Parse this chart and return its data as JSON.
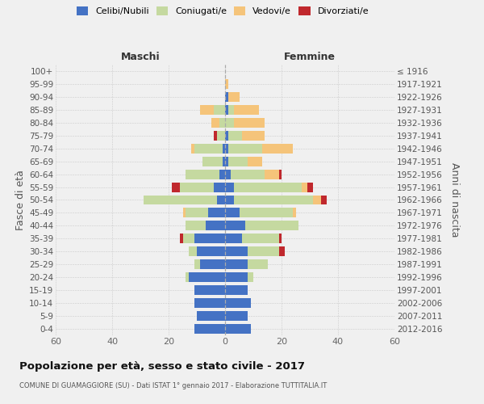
{
  "age_groups": [
    "0-4",
    "5-9",
    "10-14",
    "15-19",
    "20-24",
    "25-29",
    "30-34",
    "35-39",
    "40-44",
    "45-49",
    "50-54",
    "55-59",
    "60-64",
    "65-69",
    "70-74",
    "75-79",
    "80-84",
    "85-89",
    "90-94",
    "95-99",
    "100+"
  ],
  "birth_years": [
    "2012-2016",
    "2007-2011",
    "2002-2006",
    "1997-2001",
    "1992-1996",
    "1987-1991",
    "1982-1986",
    "1977-1981",
    "1972-1976",
    "1967-1971",
    "1962-1966",
    "1957-1961",
    "1952-1956",
    "1947-1951",
    "1942-1946",
    "1937-1941",
    "1932-1936",
    "1927-1931",
    "1922-1926",
    "1917-1921",
    "≤ 1916"
  ],
  "maschi": {
    "celibi": [
      11,
      10,
      11,
      11,
      13,
      9,
      10,
      11,
      7,
      6,
      3,
      4,
      2,
      1,
      1,
      0,
      0,
      0,
      0,
      0,
      0
    ],
    "coniugati": [
      0,
      0,
      0,
      0,
      1,
      2,
      3,
      4,
      7,
      8,
      26,
      12,
      12,
      7,
      10,
      3,
      2,
      4,
      0,
      0,
      0
    ],
    "vedovi": [
      0,
      0,
      0,
      0,
      0,
      0,
      0,
      0,
      0,
      1,
      0,
      0,
      0,
      0,
      1,
      0,
      3,
      5,
      0,
      0,
      0
    ],
    "divorziati": [
      0,
      0,
      0,
      0,
      0,
      0,
      0,
      1,
      0,
      0,
      0,
      3,
      0,
      0,
      0,
      1,
      0,
      0,
      0,
      0,
      0
    ]
  },
  "femmine": {
    "nubili": [
      9,
      8,
      9,
      8,
      8,
      8,
      8,
      6,
      7,
      5,
      3,
      3,
      2,
      1,
      1,
      1,
      0,
      1,
      1,
      0,
      0
    ],
    "coniugate": [
      0,
      0,
      0,
      0,
      2,
      7,
      11,
      13,
      19,
      19,
      28,
      24,
      12,
      7,
      12,
      5,
      3,
      2,
      0,
      0,
      0
    ],
    "vedove": [
      0,
      0,
      0,
      0,
      0,
      0,
      0,
      0,
      0,
      1,
      3,
      2,
      5,
      5,
      11,
      8,
      11,
      9,
      4,
      1,
      0
    ],
    "divorziate": [
      0,
      0,
      0,
      0,
      0,
      0,
      2,
      1,
      0,
      0,
      2,
      2,
      1,
      0,
      0,
      0,
      0,
      0,
      0,
      0,
      0
    ]
  },
  "colors": {
    "celibi_nubili": "#4472c4",
    "coniugati": "#c5d9a0",
    "vedovi": "#f5c47a",
    "divorziati": "#c0282d"
  },
  "xlim": 60,
  "title": "Popolazione per età, sesso e stato civile - 2017",
  "subtitle": "COMUNE DI GUAMAGGIORE (SU) - Dati ISTAT 1° gennaio 2017 - Elaborazione TUTTITALIA.IT",
  "ylabel_left": "Fasce di età",
  "ylabel_right": "Anni di nascita",
  "legend_labels": [
    "Celibi/Nubili",
    "Coniugati/e",
    "Vedovi/e",
    "Divorziati/e"
  ],
  "maschi_label": "Maschi",
  "femmine_label": "Femmine",
  "bg_color": "#f0f0f0"
}
